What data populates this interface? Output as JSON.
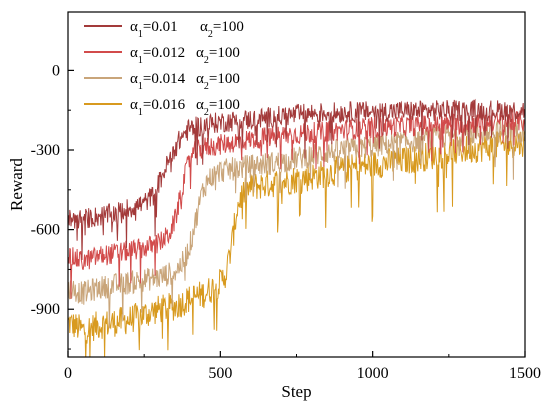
{
  "chart_data": {
    "type": "line",
    "xlabel": "Step",
    "ylabel": "Reward",
    "xlim": [
      0,
      1500
    ],
    "ylim": [
      -1080,
      220
    ],
    "xticks": [
      0,
      500,
      1000,
      1500
    ],
    "yticks": [
      0,
      -300,
      -600,
      -900
    ],
    "grid": false,
    "legend_position": "top-left",
    "series": [
      {
        "name": "α1=0.01 α2=100",
        "legend": {
          "a": "α",
          "a_sub": "1",
          "a_val": "=0.01",
          "b": "α",
          "b_sub": "2",
          "b_val": "=100"
        },
        "color": "#a33a3a",
        "noise": 40,
        "x": [
          0,
          50,
          100,
          150,
          200,
          250,
          280,
          300,
          320,
          350,
          380,
          400,
          450,
          500,
          600,
          700,
          800,
          900,
          1000,
          1100,
          1200,
          1300,
          1400,
          1500
        ],
        "y": [
          -560,
          -560,
          -550,
          -540,
          -520,
          -500,
          -470,
          -420,
          -370,
          -290,
          -240,
          -220,
          -205,
          -195,
          -185,
          -172,
          -162,
          -158,
          -155,
          -153,
          -152,
          -150,
          -150,
          -150
        ]
      },
      {
        "name": "α1=0.012 α2=100",
        "legend": {
          "a": "α",
          "a_sub": "1",
          "a_val": "=0.012",
          "b": "α",
          "b_sub": "2",
          "b_val": "=100"
        },
        "color": "#d24b4b",
        "noise": 40,
        "x": [
          0,
          50,
          100,
          150,
          200,
          250,
          300,
          330,
          350,
          370,
          390,
          400,
          420,
          450,
          500,
          600,
          700,
          800,
          900,
          1000,
          1100,
          1200,
          1300,
          1400,
          1500
        ],
        "y": [
          -700,
          -720,
          -700,
          -690,
          -680,
          -670,
          -650,
          -620,
          -570,
          -470,
          -370,
          -330,
          -305,
          -290,
          -280,
          -260,
          -245,
          -235,
          -225,
          -215,
          -210,
          -205,
          -200,
          -195,
          -190
        ]
      },
      {
        "name": "α1=0.014 α2=100",
        "legend": {
          "a": "α",
          "a_sub": "1",
          "a_val": "=0.014",
          "b": "α",
          "b_sub": "2",
          "b_val": "=100"
        },
        "color": "#c9a57a",
        "noise": 45,
        "x": [
          0,
          50,
          100,
          150,
          200,
          250,
          300,
          350,
          380,
          400,
          420,
          440,
          460,
          500,
          600,
          700,
          800,
          900,
          1000,
          1100,
          1200,
          1300,
          1400,
          1500
        ],
        "y": [
          -820,
          -840,
          -820,
          -810,
          -800,
          -790,
          -780,
          -760,
          -720,
          -660,
          -560,
          -460,
          -410,
          -380,
          -360,
          -345,
          -320,
          -300,
          -285,
          -270,
          -255,
          -240,
          -232,
          -225
        ]
      },
      {
        "name": "α1=0.016 α2=100",
        "legend": {
          "a": "α",
          "a_sub": "1",
          "a_val": "=0.016",
          "b": "α",
          "b_sub": "2",
          "b_val": "=100"
        },
        "color": "#d89a1f",
        "noise": 55,
        "x": [
          0,
          50,
          100,
          150,
          200,
          250,
          300,
          350,
          400,
          450,
          500,
          520,
          540,
          555,
          570,
          600,
          650,
          700,
          800,
          900,
          1000,
          1100,
          1200,
          1300,
          1400,
          1500
        ],
        "y": [
          -950,
          -980,
          -960,
          -950,
          -940,
          -920,
          -900,
          -890,
          -860,
          -840,
          -800,
          -760,
          -640,
          -520,
          -470,
          -440,
          -430,
          -420,
          -400,
          -375,
          -355,
          -340,
          -320,
          -300,
          -285,
          -270
        ]
      }
    ]
  }
}
